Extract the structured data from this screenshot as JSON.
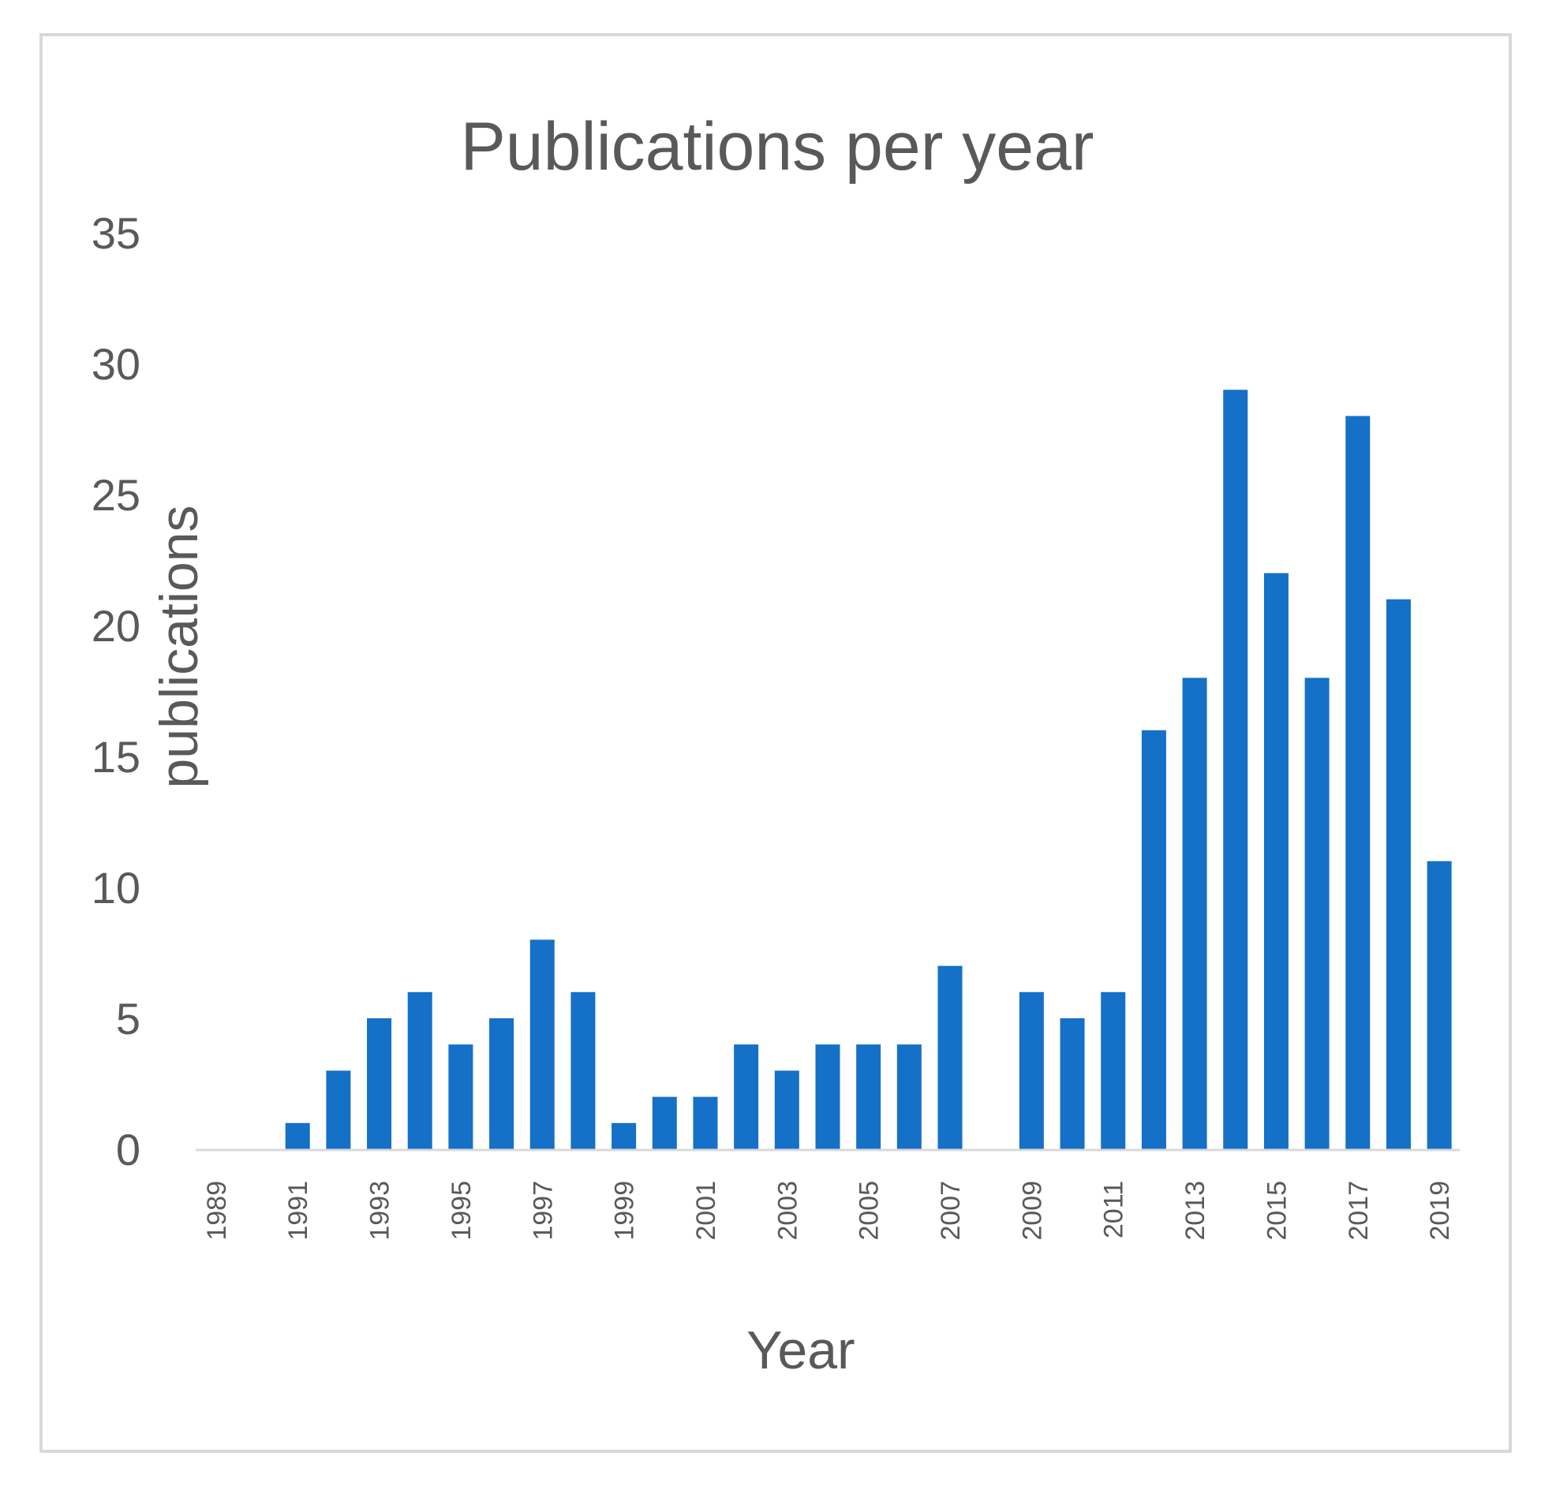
{
  "chart_data": {
    "type": "bar",
    "title": "Publications per year",
    "xlabel": "Year",
    "ylabel": "publications",
    "ylim": [
      0,
      35
    ],
    "yticks": [
      0,
      5,
      10,
      15,
      20,
      25,
      30,
      35
    ],
    "grid": false,
    "legend": "none",
    "bar_color": "#1570c7",
    "categories": [
      "1989",
      "1990",
      "1991",
      "1992",
      "1993",
      "1994",
      "1995",
      "1996",
      "1997",
      "1998",
      "1999",
      "2000",
      "2001",
      "2002",
      "2003",
      "2004",
      "2005",
      "2006",
      "2007",
      "2008",
      "2009",
      "2010",
      "2011",
      "2012",
      "2013",
      "2014",
      "2015",
      "2016",
      "2017",
      "2018",
      "2019"
    ],
    "tick_labels": [
      "1989",
      "1991",
      "1993",
      "1995",
      "1997",
      "1999",
      "2001",
      "2003",
      "2005",
      "2007",
      "2009",
      "2011",
      "2013",
      "2015",
      "2017",
      "2019"
    ],
    "values": [
      0,
      0,
      1,
      3,
      5,
      6,
      4,
      5,
      8,
      6,
      1,
      2,
      2,
      4,
      3,
      4,
      4,
      4,
      7,
      0,
      6,
      5,
      6,
      16,
      18,
      29,
      22,
      18,
      28,
      21,
      11
    ]
  }
}
